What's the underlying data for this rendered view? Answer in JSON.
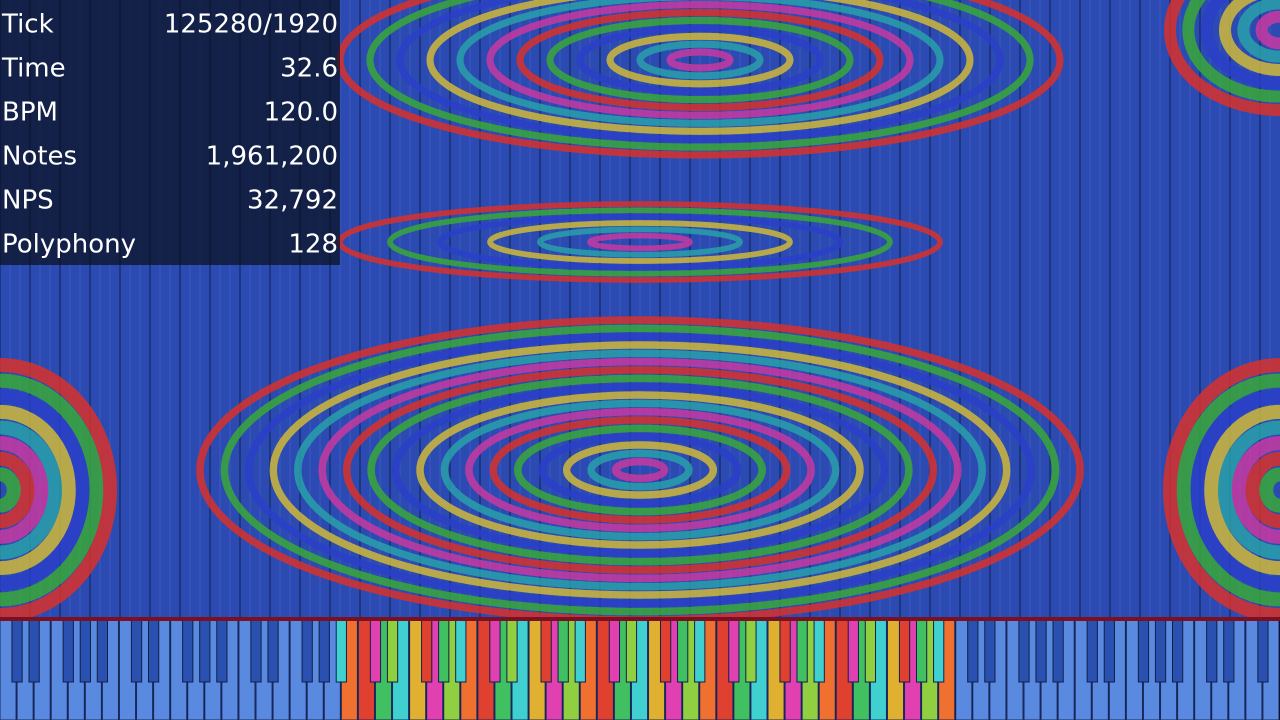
{
  "stats": [
    {
      "label": "Tick",
      "value": "125280/1920"
    },
    {
      "label": "Time",
      "value": "32.6"
    },
    {
      "label": "BPM",
      "value": "120.0"
    },
    {
      "label": "Notes",
      "value": "1,961,200"
    },
    {
      "label": "NPS",
      "value": "32,792"
    },
    {
      "label": "Polyphony",
      "value": "128"
    }
  ]
}
